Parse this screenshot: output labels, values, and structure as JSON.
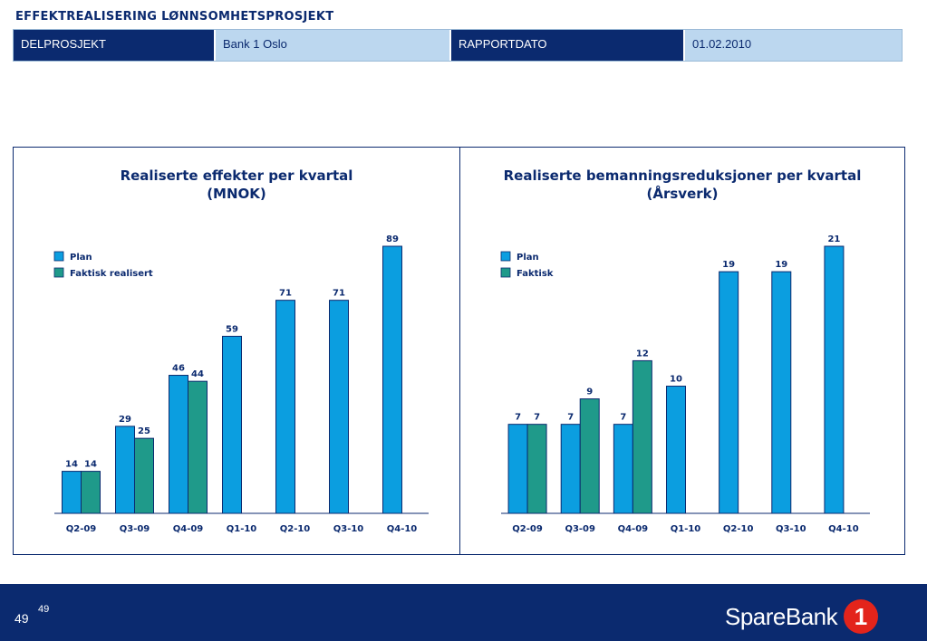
{
  "header": {
    "title": "EFFEKTREALISERING LØNNSOMHETSPROSJEKT"
  },
  "info": {
    "delprosjekt_label": "DELPROSJEKT",
    "delprosjekt_value": "Bank 1 Oslo",
    "rapportdato_label": "RAPPORTDATO",
    "rapportdato_value": "01.02.2010"
  },
  "colors": {
    "plan": "#0b9ee0",
    "actual": "#1f9a8a",
    "navy": "#0b2a6f",
    "logo_red": "#e3241b"
  },
  "chart_data": [
    {
      "type": "bar",
      "title": "Realiserte effekter per kvartal",
      "subtitle": "(MNOK)",
      "categories": [
        "Q2-09",
        "Q3-09",
        "Q4-09",
        "Q1-10",
        "Q2-10",
        "Q3-10",
        "Q4-10"
      ],
      "series": [
        {
          "name": "Plan",
          "values": [
            14,
            29,
            46,
            59,
            71,
            71,
            89
          ]
        },
        {
          "name": "Faktisk realisert",
          "values": [
            14,
            25,
            44,
            null,
            null,
            null,
            null
          ]
        }
      ],
      "ylim": [
        0,
        89
      ],
      "legend": "top-left",
      "grid": false
    },
    {
      "type": "bar",
      "title": "Realiserte bemanningsreduksjoner per kvartal",
      "subtitle": "(Årsverk)",
      "categories": [
        "Q2-09",
        "Q3-09",
        "Q4-09",
        "Q1-10",
        "Q2-10",
        "Q3-10",
        "Q4-10"
      ],
      "series": [
        {
          "name": "Plan",
          "values": [
            7,
            7,
            7,
            10,
            19,
            19,
            21
          ]
        },
        {
          "name": "Faktisk",
          "values": [
            7,
            9,
            12,
            null,
            null,
            null,
            null
          ]
        }
      ],
      "ylim": [
        0,
        21
      ],
      "legend": "top-left",
      "grid": false
    }
  ],
  "footer": {
    "page_number": "49",
    "page_number_sup": "49",
    "logo_text": "SpareBank",
    "logo_mark_text": "1"
  }
}
